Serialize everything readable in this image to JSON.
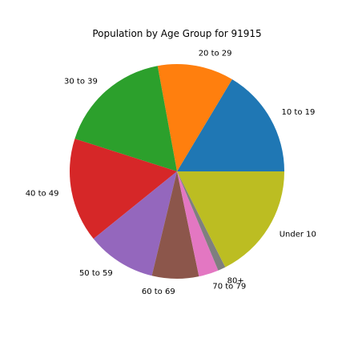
{
  "chart_data": {
    "type": "pie",
    "title": "Population by Age Group for 91915",
    "categories": [
      "10 to 19",
      "20 to 29",
      "30 to 39",
      "40 to 49",
      "50 to 59",
      "60 to 69",
      "70 to 79",
      "80+",
      "Under 10"
    ],
    "values": [
      17.0,
      11.9,
      17.8,
      16.3,
      10.8,
      7.3,
      3.1,
      1.2,
      18.2
    ],
    "colors": [
      "#1f77b4",
      "#ff7f0e",
      "#2ca02c",
      "#d62728",
      "#9467bd",
      "#8c564b",
      "#e377c2",
      "#7f7f7f",
      "#bcbd22"
    ],
    "start_angle_deg": 0,
    "direction": "counterclockwise"
  }
}
